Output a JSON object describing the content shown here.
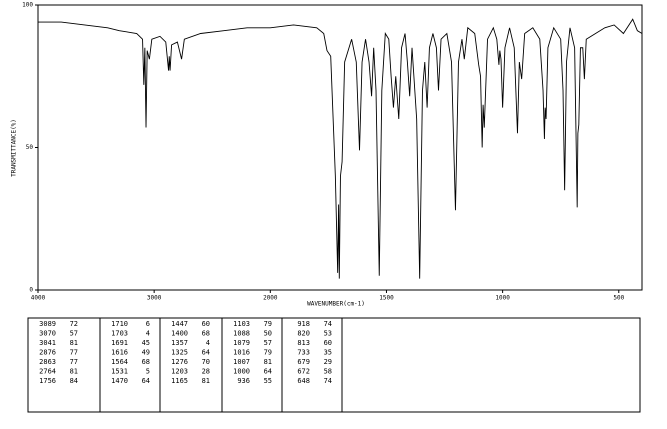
{
  "chart_data": {
    "type": "line",
    "xlabel": "WAVENUMBER(cm-1)",
    "ylabel": "TRANSMITTANCE(%)",
    "xlim": [
      4000,
      400
    ],
    "ylim": [
      0,
      100
    ],
    "xticks": [
      4000,
      3000,
      2000,
      1500,
      1000,
      500
    ],
    "yticks": [
      0,
      50,
      100
    ],
    "x": [
      4000,
      3800,
      3600,
      3400,
      3300,
      3150,
      3100,
      3089,
      3080,
      3070,
      3060,
      3041,
      3020,
      2950,
      2900,
      2876,
      2870,
      2863,
      2850,
      2800,
      2764,
      2740,
      2600,
      2400,
      2200,
      2000,
      1900,
      1800,
      1770,
      1756,
      1740,
      1720,
      1710,
      1706,
      1703,
      1698,
      1691,
      1680,
      1650,
      1630,
      1616,
      1605,
      1590,
      1575,
      1564,
      1555,
      1545,
      1531,
      1520,
      1505,
      1490,
      1480,
      1470,
      1460,
      1447,
      1435,
      1420,
      1410,
      1400,
      1390,
      1370,
      1357,
      1345,
      1335,
      1325,
      1315,
      1300,
      1285,
      1276,
      1265,
      1240,
      1220,
      1203,
      1190,
      1175,
      1165,
      1150,
      1120,
      1103,
      1095,
      1088,
      1084,
      1079,
      1065,
      1040,
      1025,
      1016,
      1012,
      1007,
      1000,
      990,
      970,
      950,
      936,
      928,
      918,
      905,
      870,
      840,
      826,
      820,
      817,
      813,
      805,
      780,
      750,
      740,
      733,
      725,
      710,
      690,
      679,
      676,
      672,
      665,
      655,
      648,
      640,
      600,
      560,
      520,
      480,
      440,
      420,
      400
    ],
    "series": [
      {
        "color": "#000000",
        "values": [
          94,
          94,
          93,
          92,
          91,
          90,
          88,
          72,
          85,
          57,
          84,
          81,
          88,
          89,
          87,
          77,
          82,
          77,
          86,
          87,
          81,
          88,
          90,
          91,
          92,
          92,
          93,
          92,
          90,
          84,
          82,
          40,
          6,
          30,
          4,
          40,
          45,
          80,
          88,
          80,
          49,
          80,
          88,
          80,
          68,
          85,
          70,
          5,
          70,
          90,
          88,
          75,
          64,
          75,
          60,
          85,
          90,
          80,
          68,
          85,
          60,
          4,
          70,
          80,
          64,
          85,
          90,
          85,
          70,
          88,
          90,
          80,
          28,
          80,
          88,
          81,
          92,
          90,
          79,
          75,
          50,
          65,
          57,
          88,
          92,
          88,
          79,
          84,
          81,
          64,
          85,
          92,
          85,
          55,
          80,
          74,
          90,
          92,
          88,
          70,
          53,
          64,
          60,
          85,
          92,
          88,
          70,
          35,
          80,
          92,
          85,
          29,
          55,
          58,
          85,
          85,
          74,
          88,
          90,
          92,
          93,
          90,
          95,
          91,
          90
        ]
      }
    ]
  },
  "peak_table": {
    "columns": [
      [
        [
          3089,
          72
        ],
        [
          3070,
          57
        ],
        [
          3041,
          81
        ],
        [
          2876,
          77
        ],
        [
          2863,
          77
        ],
        [
          2764,
          81
        ],
        [
          1756,
          84
        ]
      ],
      [
        [
          1710,
          6
        ],
        [
          1703,
          4
        ],
        [
          1691,
          45
        ],
        [
          1616,
          49
        ],
        [
          1564,
          68
        ],
        [
          1531,
          5
        ],
        [
          1470,
          64
        ]
      ],
      [
        [
          1447,
          60
        ],
        [
          1400,
          68
        ],
        [
          1357,
          4
        ],
        [
          1325,
          64
        ],
        [
          1276,
          70
        ],
        [
          1203,
          28
        ],
        [
          1165,
          81
        ]
      ],
      [
        [
          1103,
          79
        ],
        [
          1088,
          50
        ],
        [
          1079,
          57
        ],
        [
          1016,
          79
        ],
        [
          1007,
          81
        ],
        [
          1000,
          64
        ],
        [
          936,
          55
        ]
      ],
      [
        [
          918,
          74
        ],
        [
          820,
          53
        ],
        [
          813,
          60
        ],
        [
          733,
          35
        ],
        [
          679,
          29
        ],
        [
          672,
          58
        ],
        [
          648,
          74
        ]
      ]
    ]
  }
}
